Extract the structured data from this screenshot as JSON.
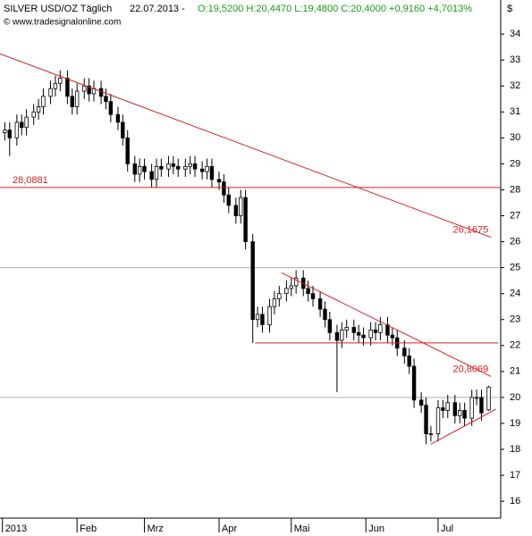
{
  "chart_data": {
    "type": "candlestick",
    "title": "SILVER USD/OZ Täglich",
    "date": "22.07.2013 -",
    "quote": "O:19,5200 H:20,4470 L:19,4800 C:20,4000 +0,9160 +4,7013%",
    "source": "© www.tradesignalonline.com",
    "y_unit": "$",
    "x": [
      2,
      4,
      7,
      9,
      11,
      14,
      16,
      18,
      21,
      23,
      25,
      28,
      30,
      32,
      35,
      37,
      39,
      42,
      44,
      46,
      49,
      51,
      53,
      56,
      58,
      60,
      63,
      65,
      67,
      70,
      72,
      74,
      77,
      79,
      81,
      84,
      86,
      88,
      91,
      93,
      95,
      98,
      100,
      102,
      105,
      107,
      109,
      112,
      114,
      116,
      119,
      121,
      123,
      126,
      128,
      130,
      133,
      135,
      137,
      140,
      142,
      144,
      147,
      149,
      151,
      154,
      156,
      158,
      161,
      163,
      165,
      168,
      170,
      172,
      175,
      177,
      179,
      182,
      184,
      186,
      189,
      191,
      193,
      196,
      198,
      200,
      203
    ],
    "open": [
      30.2,
      30.3,
      30.0,
      30.6,
      30.4,
      30.8,
      31.0,
      31.2,
      31.6,
      31.9,
      32.1,
      32.3,
      31.6,
      31.2,
      31.8,
      32.0,
      31.7,
      31.9,
      31.6,
      31.4,
      30.9,
      30.6,
      30.0,
      29.0,
      28.6,
      28.9,
      28.7,
      28.4,
      28.9,
      28.8,
      29.0,
      28.9,
      28.8,
      28.9,
      29.0,
      28.8,
      28.7,
      28.9,
      28.4,
      28.3,
      27.8,
      27.4,
      27.0,
      27.7,
      26.0,
      23.0,
      23.2,
      22.8,
      23.5,
      23.8,
      24.0,
      24.2,
      24.3,
      24.6,
      24.2,
      24.0,
      23.8,
      23.4,
      23.0,
      22.5,
      22.2,
      22.6,
      22.7,
      22.5,
      22.4,
      22.3,
      22.6,
      22.5,
      22.8,
      22.4,
      22.3,
      21.9,
      21.6,
      21.2,
      19.9,
      19.7,
      18.6,
      18.6,
      19.6,
      19.5,
      19.8,
      19.3,
      19.5,
      19.2,
      20.0,
      20.0,
      19.52
    ],
    "high": [
      30.6,
      30.6,
      30.9,
      30.9,
      31.1,
      31.3,
      31.5,
      31.9,
      32.2,
      32.4,
      32.6,
      32.6,
      31.9,
      32.1,
      32.3,
      32.3,
      32.2,
      32.2,
      31.9,
      31.7,
      31.2,
      30.9,
      30.3,
      29.3,
      29.2,
      29.2,
      29.0,
      29.2,
      29.2,
      29.3,
      29.3,
      29.2,
      29.2,
      29.3,
      29.3,
      29.1,
      29.2,
      29.2,
      28.7,
      28.6,
      28.1,
      27.7,
      28.0,
      28.0,
      26.3,
      23.5,
      23.5,
      23.8,
      24.1,
      24.3,
      24.5,
      24.6,
      24.9,
      24.9,
      24.5,
      24.3,
      24.1,
      23.7,
      23.3,
      22.8,
      22.9,
      23.0,
      23.0,
      22.8,
      22.7,
      22.9,
      22.9,
      23.1,
      23.1,
      22.7,
      22.6,
      22.2,
      21.9,
      21.5,
      20.2,
      20.0,
      18.9,
      19.9,
      19.9,
      20.1,
      20.1,
      19.8,
      19.8,
      20.3,
      20.3,
      20.3,
      20.447
    ],
    "low": [
      29.9,
      29.3,
      29.7,
      30.1,
      30.1,
      30.5,
      30.7,
      30.9,
      31.3,
      31.6,
      31.8,
      31.3,
      30.9,
      30.9,
      31.5,
      31.4,
      31.4,
      31.3,
      31.1,
      30.6,
      30.3,
      29.7,
      28.7,
      28.3,
      28.3,
      28.4,
      28.1,
      28.1,
      28.5,
      28.5,
      28.6,
      28.5,
      28.5,
      28.6,
      28.5,
      28.4,
      28.4,
      28.1,
      28.0,
      27.5,
      27.1,
      26.7,
      26.7,
      25.7,
      22.1,
      22.7,
      22.5,
      22.5,
      23.2,
      23.5,
      23.7,
      23.9,
      24.0,
      23.9,
      23.7,
      23.5,
      23.1,
      22.7,
      22.2,
      20.2,
      21.9,
      22.3,
      22.2,
      22.1,
      22.0,
      22.0,
      22.2,
      22.2,
      22.1,
      22.0,
      21.6,
      21.3,
      20.9,
      19.6,
      19.4,
      18.2,
      18.3,
      18.3,
      19.2,
      19.2,
      19.0,
      19.0,
      18.9,
      18.9,
      19.7,
      19.1,
      19.48
    ],
    "close": [
      30.3,
      30.0,
      30.6,
      30.4,
      30.8,
      31.0,
      31.2,
      31.6,
      31.9,
      32.1,
      32.3,
      31.6,
      31.2,
      31.8,
      32.0,
      31.7,
      31.9,
      31.6,
      31.4,
      30.9,
      30.6,
      30.0,
      29.0,
      28.6,
      28.9,
      28.7,
      28.4,
      28.9,
      28.8,
      29.0,
      28.9,
      28.8,
      28.9,
      29.0,
      28.8,
      28.7,
      28.9,
      28.4,
      28.3,
      27.8,
      27.4,
      27.0,
      27.7,
      26.0,
      23.0,
      23.2,
      22.8,
      23.5,
      23.8,
      24.0,
      24.2,
      24.3,
      24.6,
      24.2,
      24.0,
      23.8,
      23.4,
      23.0,
      22.5,
      22.2,
      22.6,
      22.7,
      22.5,
      22.4,
      22.3,
      22.6,
      22.5,
      22.8,
      22.4,
      22.3,
      21.9,
      21.6,
      21.2,
      19.9,
      19.7,
      18.6,
      18.6,
      19.6,
      19.5,
      19.8,
      19.3,
      19.5,
      19.2,
      20.0,
      20.0,
      19.4,
      20.4
    ],
    "up_color": "#ffffff",
    "down_color": "#000000",
    "line_color": "#d42020",
    "level_color": "#b0b0b0",
    "lines": [
      {
        "x": [
          0,
          204
        ],
        "y": [
          33.24,
          26.1675
        ],
        "label": "26,1675"
      },
      {
        "x": [
          0,
          208
        ],
        "y": [
          28.0881,
          28.0881
        ],
        "label": "28,0881"
      },
      {
        "x": [
          117,
          204
        ],
        "y": [
          24.8,
          20.8069
        ],
        "label": "20,8069"
      },
      {
        "x": [
          106,
          207
        ],
        "y": [
          22.1,
          22.1
        ]
      },
      {
        "x": [
          179,
          206
        ],
        "y": [
          18.2,
          19.55
        ]
      }
    ],
    "levels": [
      25,
      20
    ],
    "xlim": [
      0,
      208
    ],
    "ylim": [
      15.35,
      35.14
    ],
    "xticks": [
      {
        "value": 1,
        "label": "2013"
      },
      {
        "value": 32,
        "label": "Feb"
      },
      {
        "value": 60,
        "label": "Mrz"
      },
      {
        "value": 91,
        "label": "Apr"
      },
      {
        "value": 121,
        "label": "Mai"
      },
      {
        "value": 152,
        "label": "Jun"
      },
      {
        "value": 182,
        "label": "Jul"
      }
    ],
    "yticks": [
      16,
      17,
      18,
      19,
      20,
      21,
      22,
      23,
      24,
      25,
      26,
      27,
      28,
      29,
      30,
      31,
      32,
      33,
      34
    ]
  }
}
